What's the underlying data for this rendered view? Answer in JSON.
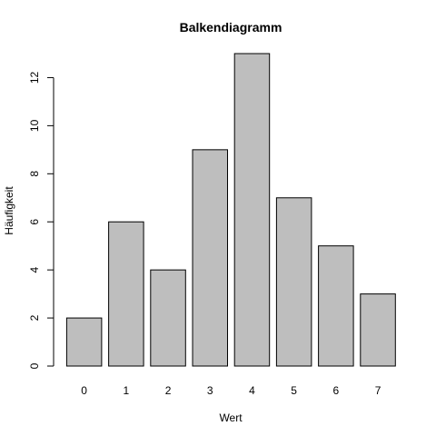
{
  "chart_data": {
    "type": "bar",
    "title": "Balkendiagramm",
    "xlabel": "Wert",
    "ylabel": "Häufigkeit",
    "categories": [
      "0",
      "1",
      "2",
      "3",
      "4",
      "5",
      "6",
      "7"
    ],
    "values": [
      2,
      6,
      4,
      9,
      13,
      7,
      5,
      3
    ],
    "ylim": [
      0,
      13
    ],
    "yticks": [
      0,
      2,
      4,
      6,
      8,
      10,
      12
    ],
    "bar_color": "#bebebe",
    "grid": false,
    "legend": "none"
  }
}
